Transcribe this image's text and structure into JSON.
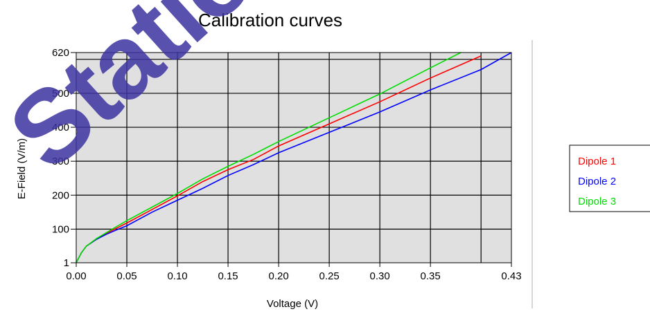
{
  "chart_data": {
    "type": "line",
    "title": "Calibration curves",
    "xlabel": "Voltage (V)",
    "ylabel": "E-Field (V/m)",
    "xlim": [
      0,
      0.43
    ],
    "ylim": [
      1,
      620
    ],
    "x_ticks": [
      "0.00",
      "0.05",
      "0.10",
      "0.15",
      "0.20",
      "0.25",
      "0.30",
      "0.35",
      "0.43"
    ],
    "x_tick_values": [
      0,
      0.05,
      0.1,
      0.15,
      0.2,
      0.25,
      0.3,
      0.35,
      0.43
    ],
    "y_ticks": [
      "1",
      "100",
      "200",
      "300",
      "400",
      "500",
      "620"
    ],
    "y_tick_values": [
      1,
      100,
      200,
      300,
      400,
      500,
      620
    ],
    "x_gridlines": [
      0.05,
      0.1,
      0.15,
      0.2,
      0.25,
      0.3,
      0.35,
      0.4
    ],
    "y_gridlines": [
      100,
      200,
      300,
      400,
      500,
      600
    ],
    "grid": true,
    "plot_background": "#e0e0e0",
    "legend_position": "right",
    "series": [
      {
        "name": "Dipole 1",
        "color": "#ff0000",
        "x": [
          0.0,
          0.005,
          0.01,
          0.02,
          0.03,
          0.04,
          0.05,
          0.075,
          0.1,
          0.125,
          0.15,
          0.175,
          0.2,
          0.25,
          0.3,
          0.35,
          0.4
        ],
        "y": [
          1,
          30,
          50,
          70,
          88,
          103,
          118,
          158,
          198,
          240,
          275,
          305,
          345,
          410,
          475,
          545,
          610
        ]
      },
      {
        "name": "Dipole 2",
        "color": "#0000ff",
        "x": [
          0.0,
          0.005,
          0.01,
          0.02,
          0.03,
          0.04,
          0.05,
          0.075,
          0.1,
          0.125,
          0.15,
          0.175,
          0.2,
          0.25,
          0.3,
          0.35,
          0.4,
          0.43
        ],
        "y": [
          1,
          30,
          50,
          70,
          85,
          98,
          110,
          150,
          185,
          220,
          258,
          290,
          325,
          385,
          445,
          510,
          570,
          620
        ]
      },
      {
        "name": "Dipole 3",
        "color": "#00dd00",
        "x": [
          0.0,
          0.005,
          0.01,
          0.02,
          0.03,
          0.04,
          0.05,
          0.075,
          0.1,
          0.125,
          0.15,
          0.175,
          0.2,
          0.25,
          0.3,
          0.35,
          0.38
        ],
        "y": [
          1,
          30,
          50,
          72,
          90,
          108,
          125,
          165,
          205,
          248,
          285,
          320,
          358,
          428,
          498,
          575,
          620
        ]
      }
    ]
  },
  "watermark": "Station"
}
